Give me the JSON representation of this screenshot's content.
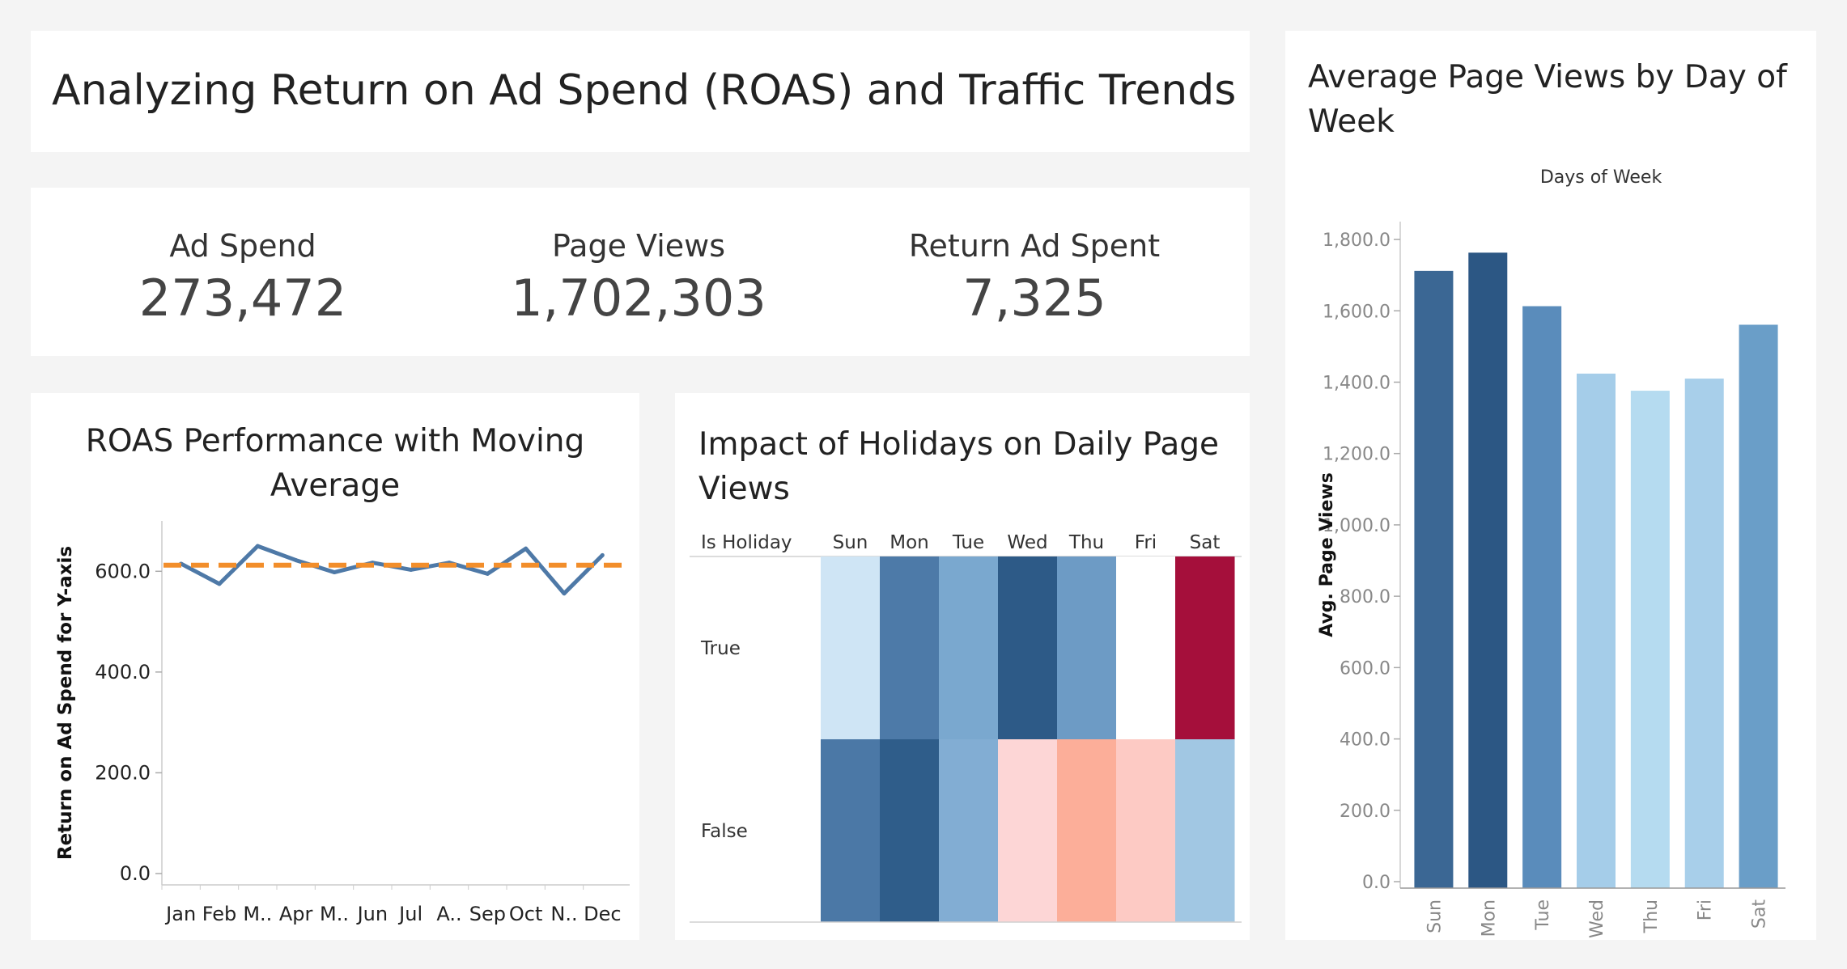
{
  "dashboard": {
    "title": "Analyzing Return on Ad Spend (ROAS) and Traffic Trends"
  },
  "kpis": [
    {
      "label": "Ad Spend",
      "value": "273,472"
    },
    {
      "label": "Page Views",
      "value": "1,702,303"
    },
    {
      "label": "Return Ad Spent",
      "value": "7,325"
    }
  ],
  "colors": {
    "roas_line": "#4e79a7",
    "moving_average": "#f28e2b",
    "bar_scale_low": "#b9ddf1",
    "bar_scale_high": "#2a5783",
    "heat_high": "#a50f3b"
  },
  "chart_data": [
    {
      "type": "line",
      "title_lines": [
        "ROAS Performance with Moving",
        "Average"
      ],
      "ylabel": "Return on Ad Spend for Y-axis",
      "xlabel": "",
      "categories": [
        "Jan",
        "Feb",
        "M..",
        "Apr",
        "M..",
        "Jun",
        "Jul",
        "A..",
        "Sep",
        "Oct",
        "N..",
        "Dec"
      ],
      "series": [
        {
          "values": [
            615,
            575,
            650,
            622,
            598,
            617,
            603,
            617,
            595,
            645,
            556,
            632
          ]
        }
      ],
      "moving_average": 612,
      "ylim": [
        0,
        700
      ],
      "yticks": [
        0,
        200,
        400,
        600
      ],
      "ytick_labels": [
        "0.0",
        "200.0",
        "400.0",
        "600.0"
      ],
      "grid": false
    },
    {
      "type": "heatmap",
      "title_lines": [
        "Impact of Holidays on Daily Page",
        "Views"
      ],
      "row_header": "Is Holiday",
      "columns": [
        "Sun",
        "Mon",
        "Tue",
        "Wed",
        "Thu",
        "Fri",
        "Sat"
      ],
      "rows": [
        "True",
        "False"
      ],
      "cell_colors": [
        [
          "#cfe5f5",
          "#4d7aa8",
          "#7aa8cf",
          "#2d5a87",
          "#6d9bc5",
          "#ffffff",
          "#a50f3b"
        ],
        [
          "#4b78a6",
          "#2f5d8a",
          "#82add3",
          "#fdd6d6",
          "#fcae99",
          "#fdcac4",
          "#a1c7e3"
        ]
      ]
    },
    {
      "type": "bar",
      "title_lines": [
        "Average Page Views by Day of",
        "Week"
      ],
      "top_label": "Days of Week",
      "ylabel": "Avg. Page Views",
      "categories": [
        "Sun",
        "Mon",
        "Tue",
        "Wed",
        "Thu",
        "Fri",
        "Sat"
      ],
      "values": [
        1712,
        1763,
        1613,
        1424,
        1376,
        1410,
        1561
      ],
      "bar_colors": [
        "#3b6794",
        "#2c5784",
        "#5a8cbb",
        "#a5cde9",
        "#b5dbf0",
        "#a8cfea",
        "#6a9ec8"
      ],
      "ylim": [
        0,
        1850
      ],
      "yticks": [
        0,
        200,
        400,
        600,
        800,
        1000,
        1200,
        1400,
        1600,
        1800
      ],
      "ytick_labels": [
        "0.0",
        "200.0",
        "400.0",
        "600.0",
        "800.0",
        "1,000.0",
        "1,200.0",
        "1,400.0",
        "1,600.0",
        "1,800.0"
      ]
    }
  ]
}
